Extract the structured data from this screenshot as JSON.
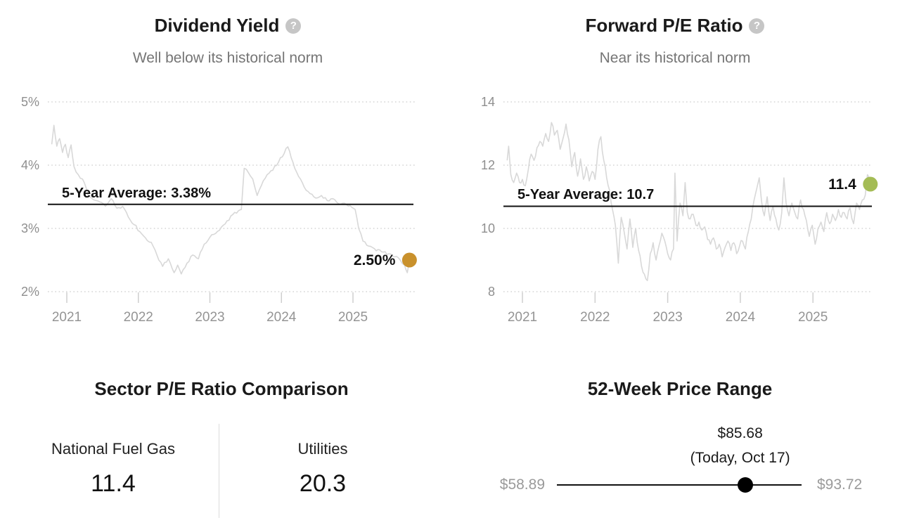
{
  "ui": {
    "help_glyph": "?"
  },
  "chart_data": [
    {
      "type": "line",
      "title": "Dividend Yield",
      "subtitle": "Well below its historical norm",
      "xlabel": "",
      "ylabel": "Dividend Yield (%)",
      "x_ticks": [
        "2021",
        "2022",
        "2023",
        "2024",
        "2025"
      ],
      "x_tick_years": [
        2021,
        2022,
        2023,
        2024,
        2025
      ],
      "y_ticks": {
        "values": [
          2,
          3,
          4,
          5
        ],
        "labels": [
          "2%",
          "3%",
          "4%",
          "5%"
        ]
      },
      "xlim": [
        2020.73,
        2025.87
      ],
      "ylim": [
        1.9,
        5.0
      ],
      "grid": "dotted-horizontal",
      "line_color": "#d8d8d8",
      "average_line": {
        "label": "5-Year Average: 3.38%",
        "value": 3.38,
        "color": "#111111"
      },
      "current": {
        "label": "2.50%",
        "value": 2.5,
        "marker_color": "#c9912c"
      },
      "series": [
        {
          "name": "Dividend Yield",
          "points": [
            [
              2020.79,
              4.33
            ],
            [
              2020.82,
              4.63
            ],
            [
              2020.86,
              4.3
            ],
            [
              2020.9,
              4.42
            ],
            [
              2020.94,
              4.2
            ],
            [
              2020.98,
              4.33
            ],
            [
              2021.02,
              4.12
            ],
            [
              2021.06,
              4.32
            ],
            [
              2021.1,
              3.98
            ],
            [
              2021.16,
              3.85
            ],
            [
              2021.22,
              3.78
            ],
            [
              2021.3,
              3.52
            ],
            [
              2021.38,
              3.45
            ],
            [
              2021.46,
              3.42
            ],
            [
              2021.54,
              3.35
            ],
            [
              2021.62,
              3.47
            ],
            [
              2021.7,
              3.32
            ],
            [
              2021.78,
              3.35
            ],
            [
              2021.86,
              3.18
            ],
            [
              2021.94,
              3.06
            ],
            [
              2022.02,
              2.95
            ],
            [
              2022.1,
              2.85
            ],
            [
              2022.18,
              2.78
            ],
            [
              2022.26,
              2.58
            ],
            [
              2022.34,
              2.4
            ],
            [
              2022.42,
              2.52
            ],
            [
              2022.5,
              2.3
            ],
            [
              2022.55,
              2.42
            ],
            [
              2022.6,
              2.28
            ],
            [
              2022.68,
              2.45
            ],
            [
              2022.76,
              2.58
            ],
            [
              2022.84,
              2.52
            ],
            [
              2022.92,
              2.75
            ],
            [
              2023.0,
              2.86
            ],
            [
              2023.08,
              2.92
            ],
            [
              2023.16,
              3.02
            ],
            [
              2023.24,
              3.12
            ],
            [
              2023.32,
              3.22
            ],
            [
              2023.4,
              3.28
            ],
            [
              2023.44,
              3.3
            ],
            [
              2023.48,
              3.95
            ],
            [
              2023.54,
              3.88
            ],
            [
              2023.6,
              3.78
            ],
            [
              2023.66,
              3.52
            ],
            [
              2023.72,
              3.68
            ],
            [
              2023.8,
              3.85
            ],
            [
              2023.88,
              3.92
            ],
            [
              2023.96,
              4.05
            ],
            [
              2024.09,
              4.29
            ],
            [
              2024.16,
              4.05
            ],
            [
              2024.24,
              3.82
            ],
            [
              2024.32,
              3.65
            ],
            [
              2024.4,
              3.55
            ],
            [
              2024.48,
              3.48
            ],
            [
              2024.56,
              3.52
            ],
            [
              2024.64,
              3.44
            ],
            [
              2024.72,
              3.47
            ],
            [
              2024.8,
              3.39
            ],
            [
              2024.88,
              3.4
            ],
            [
              2024.96,
              3.36
            ],
            [
              2025.03,
              3.3
            ],
            [
              2025.08,
              3.0
            ],
            [
              2025.14,
              2.8
            ],
            [
              2025.22,
              2.72
            ],
            [
              2025.3,
              2.68
            ],
            [
              2025.4,
              2.63
            ],
            [
              2025.5,
              2.6
            ],
            [
              2025.58,
              2.55
            ],
            [
              2025.66,
              2.5
            ],
            [
              2025.72,
              2.42
            ],
            [
              2025.76,
              2.3
            ],
            [
              2025.79,
              2.5
            ]
          ]
        }
      ]
    },
    {
      "type": "line",
      "title": "Forward P/E Ratio",
      "subtitle": "Near its historical norm",
      "xlabel": "",
      "ylabel": "Forward P/E",
      "x_ticks": [
        "2021",
        "2022",
        "2023",
        "2024",
        "2025"
      ],
      "x_tick_years": [
        2021,
        2022,
        2023,
        2024,
        2025
      ],
      "y_ticks": {
        "values": [
          8,
          10,
          12,
          14
        ],
        "labels": [
          "8",
          "10",
          "12",
          "14"
        ]
      },
      "xlim": [
        2020.74,
        2025.81
      ],
      "ylim": [
        7.8,
        14.0
      ],
      "grid": "dotted-horizontal",
      "line_color": "#d8d8d8",
      "average_line": {
        "label": "5-Year Average: 10.7",
        "value": 10.7,
        "color": "#111111"
      },
      "current": {
        "label": "11.4",
        "value": 11.4,
        "marker_color": "#a4bc55"
      },
      "series": [
        {
          "name": "Forward P/E Ratio",
          "points": [
            [
              2020.79,
              12.15
            ],
            [
              2020.81,
              12.6
            ],
            [
              2020.84,
              11.7
            ],
            [
              2020.88,
              11.45
            ],
            [
              2020.92,
              11.75
            ],
            [
              2020.96,
              11.45
            ],
            [
              2021.0,
              11.55
            ],
            [
              2021.04,
              11.35
            ],
            [
              2021.08,
              11.85
            ],
            [
              2021.12,
              12.35
            ],
            [
              2021.16,
              12.15
            ],
            [
              2021.2,
              12.55
            ],
            [
              2021.24,
              12.75
            ],
            [
              2021.28,
              12.6
            ],
            [
              2021.32,
              13.0
            ],
            [
              2021.36,
              12.75
            ],
            [
              2021.4,
              13.35
            ],
            [
              2021.44,
              12.95
            ],
            [
              2021.48,
              13.1
            ],
            [
              2021.52,
              12.5
            ],
            [
              2021.56,
              12.85
            ],
            [
              2021.6,
              13.3
            ],
            [
              2021.64,
              12.8
            ],
            [
              2021.68,
              11.95
            ],
            [
              2021.72,
              12.4
            ],
            [
              2021.76,
              11.65
            ],
            [
              2021.8,
              12.2
            ],
            [
              2021.84,
              11.55
            ],
            [
              2021.88,
              11.95
            ],
            [
              2021.92,
              11.5
            ],
            [
              2021.96,
              11.8
            ],
            [
              2022.0,
              11.55
            ],
            [
              2022.04,
              12.5
            ],
            [
              2022.08,
              12.9
            ],
            [
              2022.12,
              12.15
            ],
            [
              2022.16,
              11.6
            ],
            [
              2022.2,
              11.2
            ],
            [
              2022.24,
              10.6
            ],
            [
              2022.28,
              10.1
            ],
            [
              2022.32,
              8.9
            ],
            [
              2022.36,
              10.35
            ],
            [
              2022.4,
              9.9
            ],
            [
              2022.44,
              9.35
            ],
            [
              2022.48,
              10.3
            ],
            [
              2022.52,
              9.4
            ],
            [
              2022.56,
              10.0
            ],
            [
              2022.6,
              9.3
            ],
            [
              2022.64,
              8.8
            ],
            [
              2022.68,
              8.55
            ],
            [
              2022.72,
              8.35
            ],
            [
              2022.76,
              9.2
            ],
            [
              2022.8,
              9.55
            ],
            [
              2022.84,
              9.0
            ],
            [
              2022.88,
              9.45
            ],
            [
              2022.92,
              9.85
            ],
            [
              2022.96,
              9.6
            ],
            [
              2023.0,
              9.2
            ],
            [
              2023.04,
              9.0
            ],
            [
              2023.08,
              9.35
            ],
            [
              2023.1,
              11.75
            ],
            [
              2023.13,
              9.6
            ],
            [
              2023.17,
              10.8
            ],
            [
              2023.21,
              10.4
            ],
            [
              2023.24,
              11.45
            ],
            [
              2023.27,
              10.5
            ],
            [
              2023.31,
              10.3
            ],
            [
              2023.35,
              10.45
            ],
            [
              2023.39,
              10.1
            ],
            [
              2023.43,
              10.2
            ],
            [
              2023.47,
              9.95
            ],
            [
              2023.51,
              10.05
            ],
            [
              2023.55,
              9.65
            ],
            [
              2023.59,
              9.5
            ],
            [
              2023.63,
              9.7
            ],
            [
              2023.67,
              9.35
            ],
            [
              2023.71,
              9.5
            ],
            [
              2023.75,
              9.1
            ],
            [
              2023.79,
              9.4
            ],
            [
              2023.83,
              9.6
            ],
            [
              2023.87,
              9.3
            ],
            [
              2023.91,
              9.55
            ],
            [
              2023.95,
              9.2
            ],
            [
              2023.99,
              9.45
            ],
            [
              2024.03,
              9.6
            ],
            [
              2024.07,
              9.35
            ],
            [
              2024.11,
              9.9
            ],
            [
              2024.15,
              10.3
            ],
            [
              2024.19,
              10.9
            ],
            [
              2024.23,
              11.3
            ],
            [
              2024.26,
              11.6
            ],
            [
              2024.29,
              10.9
            ],
            [
              2024.33,
              10.4
            ],
            [
              2024.37,
              11.0
            ],
            [
              2024.41,
              10.25
            ],
            [
              2024.45,
              10.7
            ],
            [
              2024.49,
              10.3
            ],
            [
              2024.53,
              9.95
            ],
            [
              2024.57,
              10.5
            ],
            [
              2024.6,
              11.6
            ],
            [
              2024.63,
              10.8
            ],
            [
              2024.67,
              10.4
            ],
            [
              2024.71,
              10.8
            ],
            [
              2024.75,
              10.5
            ],
            [
              2024.79,
              10.3
            ],
            [
              2024.83,
              10.9
            ],
            [
              2024.87,
              10.6
            ],
            [
              2024.91,
              10.25
            ],
            [
              2024.95,
              9.75
            ],
            [
              2024.99,
              10.1
            ],
            [
              2025.03,
              9.5
            ],
            [
              2025.07,
              10.0
            ],
            [
              2025.11,
              10.2
            ],
            [
              2025.15,
              9.9
            ],
            [
              2025.19,
              10.5
            ],
            [
              2025.23,
              10.15
            ],
            [
              2025.27,
              10.45
            ],
            [
              2025.31,
              10.25
            ],
            [
              2025.35,
              10.6
            ],
            [
              2025.39,
              10.35
            ],
            [
              2025.43,
              10.5
            ],
            [
              2025.47,
              10.3
            ],
            [
              2025.51,
              10.65
            ],
            [
              2025.56,
              10.15
            ],
            [
              2025.6,
              10.8
            ],
            [
              2025.64,
              10.6
            ],
            [
              2025.68,
              10.9
            ],
            [
              2025.72,
              11.05
            ],
            [
              2025.75,
              11.7
            ],
            [
              2025.79,
              11.4
            ]
          ]
        }
      ]
    },
    {
      "type": "table",
      "title": "Sector P/E Ratio Comparison",
      "columns": [
        "National Fuel Gas",
        "Utilities"
      ],
      "values": [
        11.4,
        20.3
      ],
      "value_labels": [
        "11.4",
        "20.3"
      ]
    },
    {
      "type": "range",
      "title": "52-Week Price Range",
      "low": 58.89,
      "high": 93.72,
      "current": 85.68,
      "low_label": "$58.89",
      "high_label": "$93.72",
      "current_label": "$85.68",
      "current_sublabel": "(Today, Oct 17)"
    }
  ]
}
